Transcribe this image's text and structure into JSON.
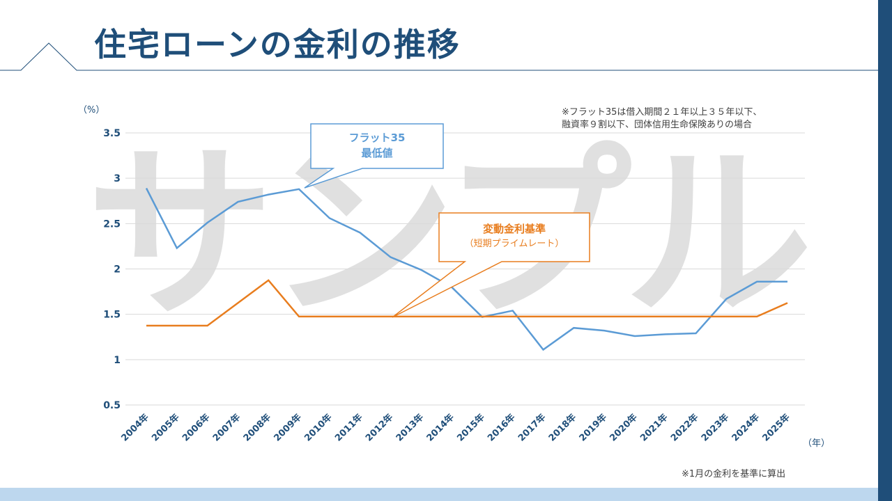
{
  "title": "住宅ローンの金利の推移",
  "watermark": "サンプル",
  "note_top": [
    "※フラット35は借入期間２１年以上３５年以下、",
    "融資率９割以下、団体信用生命保険ありの場合"
  ],
  "note_bottom": "※1月の金利を基準に算出",
  "colors": {
    "brand": "#1f4e79",
    "flat35": "#5b9bd5",
    "variable": "#e87d1e",
    "band": "#bdd7ee"
  },
  "chart_data": {
    "type": "line",
    "ylabel": "（%）",
    "xlabel": "（年）",
    "ylim": [
      0.5,
      3.5
    ],
    "yticks": [
      "3.5",
      "3",
      "2.5",
      "2",
      "1.5",
      "1",
      "0.5"
    ],
    "grid": true,
    "categories": [
      "2004年",
      "2005年",
      "2006年",
      "2007年",
      "2008年",
      "2009年",
      "2010年",
      "2011年",
      "2012年",
      "2013年",
      "2014年",
      "2015年",
      "2016年",
      "2017年",
      "2018年",
      "2019年",
      "2020年",
      "2021年",
      "2022年",
      "2023年",
      "2024年",
      "2025年"
    ],
    "series": [
      {
        "name": "フラット35 最低値",
        "label_lines": [
          "フラット35",
          "最低値"
        ],
        "color": "#5b9bd5",
        "values": [
          2.89,
          2.23,
          2.51,
          2.74,
          2.82,
          2.88,
          2.56,
          2.4,
          2.13,
          1.99,
          1.8,
          1.47,
          1.54,
          1.11,
          1.35,
          1.32,
          1.26,
          1.28,
          1.29,
          1.67,
          1.86,
          1.86
        ]
      },
      {
        "name": "変動金利基準（短期プライムレート）",
        "label_lines": [
          "変動金利基準",
          "（短期プライムレート）"
        ],
        "color": "#e87d1e",
        "values": [
          1.375,
          1.375,
          1.375,
          1.625,
          1.875,
          1.475,
          1.475,
          1.475,
          1.475,
          1.475,
          1.475,
          1.475,
          1.475,
          1.475,
          1.475,
          1.475,
          1.475,
          1.475,
          1.475,
          1.475,
          1.475,
          1.625
        ]
      }
    ]
  }
}
